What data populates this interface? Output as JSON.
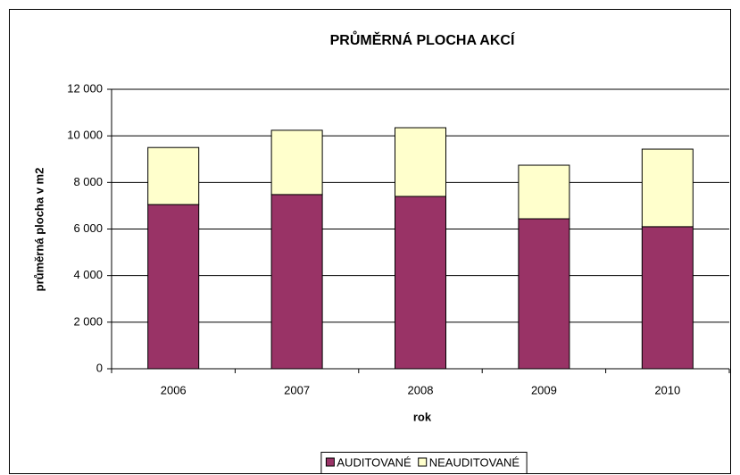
{
  "chart_data": {
    "type": "stacked_bar",
    "title": "PRŮMĚRNÁ PLOCHA AKCÍ",
    "x_label": "rok",
    "y_label": "průměrná plocha v m2",
    "categories": [
      "2006",
      "2007",
      "2008",
      "2009",
      "2010"
    ],
    "series": [
      {
        "name": "AUDITOVANÉ",
        "color": "#993366",
        "values": [
          7050,
          7480,
          7400,
          6440,
          6100
        ]
      },
      {
        "name": "NEAUDITOVANÉ",
        "color": "#FFFFCC",
        "values": [
          2450,
          2760,
          2950,
          2300,
          3330
        ]
      }
    ],
    "ylim": [
      0,
      12000
    ],
    "yticks": [
      0,
      {
        "value": 2000,
        "label": "2 000"
      },
      {
        "value": 4000,
        "label": "4 000"
      },
      {
        "value": 6000,
        "label": "6 000"
      },
      {
        "value": 8000,
        "label": "8 000"
      },
      {
        "value": 10000,
        "label": "10 000"
      },
      {
        "value": 12000,
        "label": "12 000"
      }
    ],
    "grid": true,
    "legend": "bottom"
  }
}
